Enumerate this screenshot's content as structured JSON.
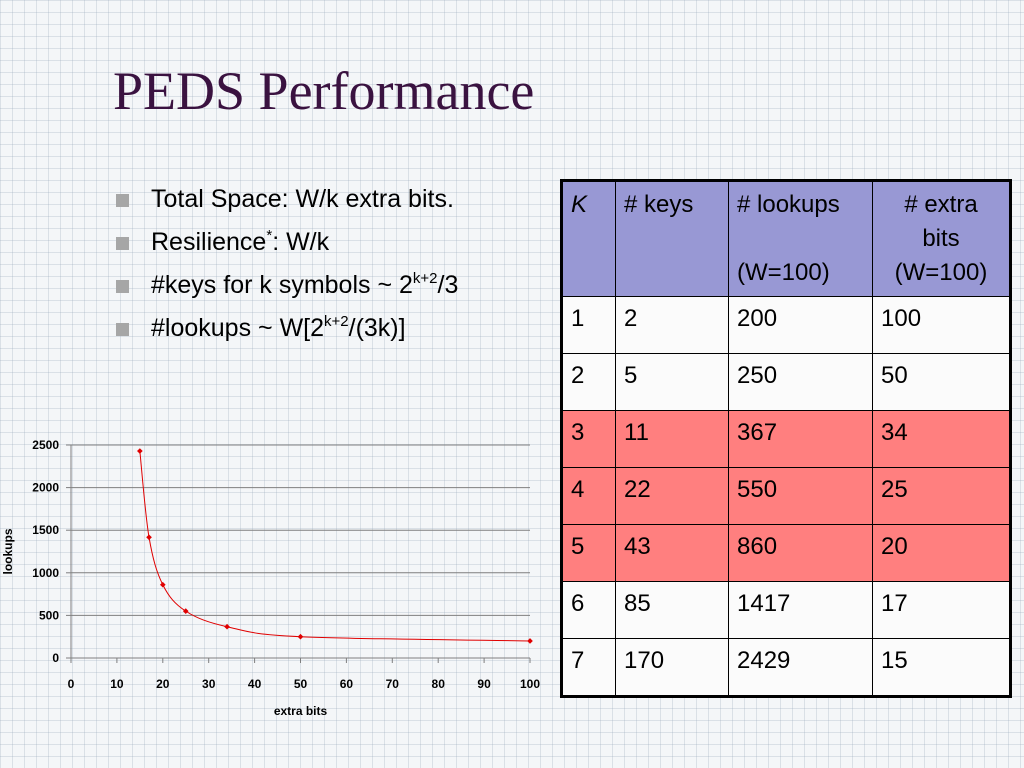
{
  "slide": {
    "title": "PEDS Performance",
    "bullets": [
      {
        "text": "Total Space: W/k extra bits."
      },
      {
        "pre": "Resilience",
        "sup": "*",
        "post": ": W/k"
      },
      {
        "pre": "#keys for k symbols ~ 2",
        "sup": "k+2",
        "post": "/3"
      },
      {
        "pre": "#lookups ~ W[2",
        "sup": "k+2",
        "post": "/(3k)]"
      }
    ]
  },
  "table": {
    "headers": {
      "k": "K",
      "keys": "# keys",
      "lookups_a": "# lookups",
      "lookups_b": "(W=100)",
      "extra_a": "# extra",
      "extra_b": "bits",
      "extra_c": "(W=100)"
    },
    "rows": [
      {
        "k": "1",
        "keys": "2",
        "lookups": "200",
        "extra": "100",
        "highlight": false
      },
      {
        "k": "2",
        "keys": "5",
        "lookups": "250",
        "extra": "50",
        "highlight": false
      },
      {
        "k": "3",
        "keys": "11",
        "lookups": "367",
        "extra": "34",
        "highlight": true
      },
      {
        "k": "4",
        "keys": "22",
        "lookups": "550",
        "extra": "25",
        "highlight": true
      },
      {
        "k": "5",
        "keys": "43",
        "lookups": "860",
        "extra": "20",
        "highlight": true
      },
      {
        "k": "6",
        "keys": "85",
        "lookups": "1417",
        "extra": "17",
        "highlight": false
      },
      {
        "k": "7",
        "keys": "170",
        "lookups": "2429",
        "extra": "15",
        "highlight": false
      }
    ],
    "colors": {
      "header": "#9898d4",
      "highlight": "#ff7f7f"
    }
  },
  "chart_data": {
    "type": "line",
    "xlabel": "extra bits",
    "ylabel": "lookups",
    "xlim": [
      0,
      100
    ],
    "ylim": [
      0,
      2500
    ],
    "xticks": [
      0,
      10,
      20,
      30,
      40,
      50,
      60,
      70,
      80,
      90,
      100
    ],
    "yticks": [
      0,
      500,
      1000,
      1500,
      2000,
      2500
    ],
    "grid": "horizontal",
    "legend": "none",
    "series": [
      {
        "color": "#e00000",
        "points": [
          {
            "x": 15,
            "y": 2429
          },
          {
            "x": 17,
            "y": 1417
          },
          {
            "x": 20,
            "y": 860
          },
          {
            "x": 25,
            "y": 550
          },
          {
            "x": 34,
            "y": 367
          },
          {
            "x": 50,
            "y": 250
          },
          {
            "x": 100,
            "y": 200
          }
        ]
      }
    ]
  }
}
